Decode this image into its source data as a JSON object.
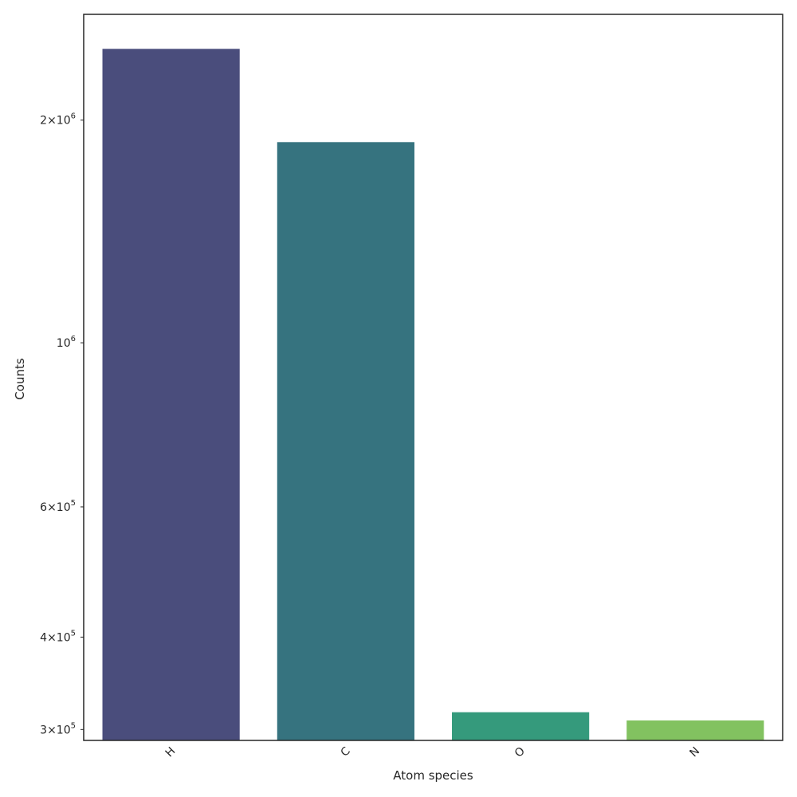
{
  "chart_data": {
    "type": "bar",
    "xlabel": "Atom species",
    "ylabel": "Counts",
    "categories": [
      "H",
      "C",
      "O",
      "N"
    ],
    "values": [
      2500000,
      1870000,
      317000,
      309000
    ],
    "colors": [
      "#4a4d7c",
      "#36737f",
      "#359a7c",
      "#82c260"
    ],
    "yscale": "log",
    "ylim": [
      290000,
      2780000
    ],
    "yticks": [
      {
        "value": 300000,
        "mantissa": "3",
        "exponent": "5"
      },
      {
        "value": 400000,
        "mantissa": "4",
        "exponent": "5"
      },
      {
        "value": 600000,
        "mantissa": "6",
        "exponent": "5"
      },
      {
        "value": 1000000,
        "mantissa": "",
        "exponent": "6"
      },
      {
        "value": 2000000,
        "mantissa": "2",
        "exponent": "6"
      }
    ],
    "grid": false,
    "legend": "none"
  }
}
